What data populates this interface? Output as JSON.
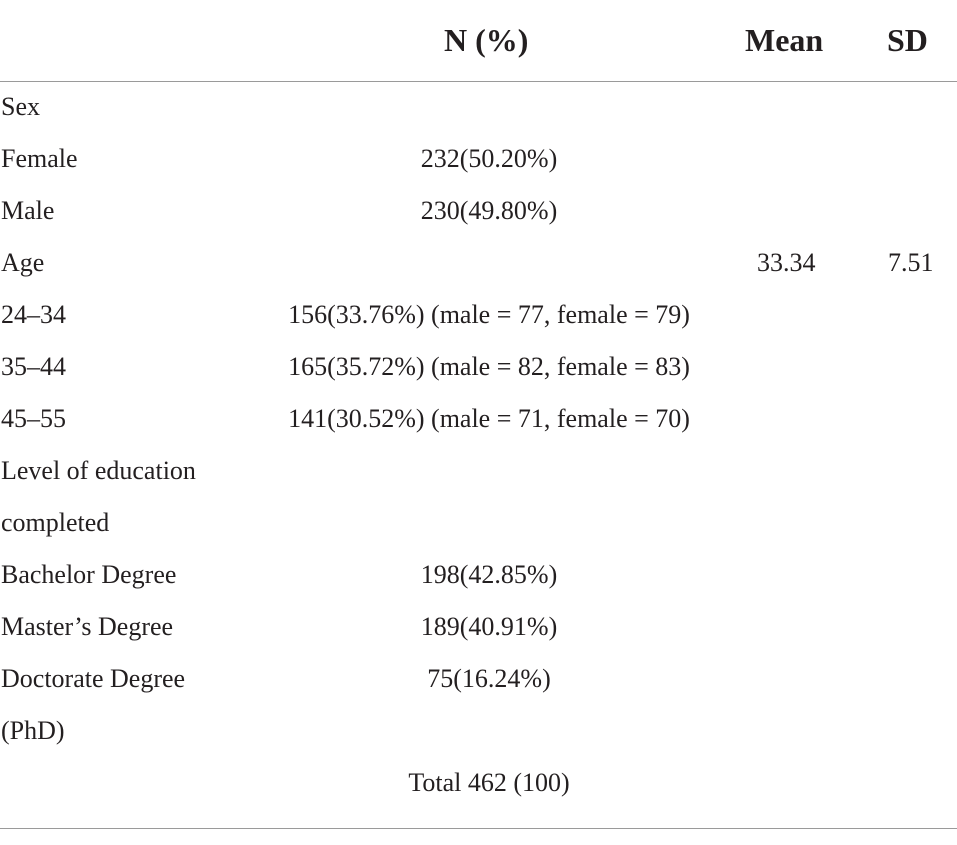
{
  "table": {
    "headers": {
      "label": "",
      "n": "N (%)",
      "mean": "Mean",
      "sd": "SD"
    },
    "rows": [
      {
        "label": "Sex",
        "n": "",
        "mean": "",
        "sd": ""
      },
      {
        "label": "Female",
        "n": "232(50.20%)",
        "mean": "",
        "sd": ""
      },
      {
        "label": "Male",
        "n": "230(49.80%)",
        "mean": "",
        "sd": ""
      },
      {
        "label": "Age",
        "n": "",
        "mean": "33.34",
        "sd": "7.51"
      },
      {
        "label": "24–34",
        "n": "156(33.76%) (male = 77, female = 79)",
        "mean": "",
        "sd": ""
      },
      {
        "label": "35–44",
        "n": "165(35.72%) (male = 82, female = 83)",
        "mean": "",
        "sd": ""
      },
      {
        "label": "45–55",
        "n": "141(30.52%) (male = 71, female = 70)",
        "mean": "",
        "sd": ""
      },
      {
        "label": "Level of education",
        "n": "",
        "mean": "",
        "sd": ""
      },
      {
        "label": "completed",
        "n": "",
        "mean": "",
        "sd": ""
      },
      {
        "label": "Bachelor Degree",
        "n": "198(42.85%)",
        "mean": "",
        "sd": ""
      },
      {
        "label": "Master’s Degree",
        "n": "189(40.91%)",
        "mean": "",
        "sd": ""
      },
      {
        "label": "Doctorate Degree",
        "n": "75(16.24%)",
        "mean": "",
        "sd": ""
      },
      {
        "label": "(PhD)",
        "n": "",
        "mean": "",
        "sd": ""
      },
      {
        "label": "",
        "n": "Total 462 (100)",
        "mean": "",
        "sd": ""
      }
    ]
  }
}
